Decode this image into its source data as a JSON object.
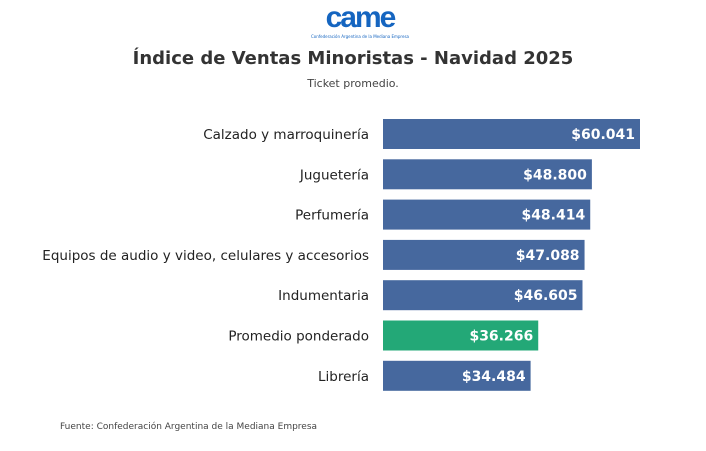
{
  "logo": {
    "text": "came",
    "subtext": "Confederación Argentina de la Mediana Empresa"
  },
  "source": "Fuente: Confederación Argentina de la Mediana Empresa",
  "chart_data": {
    "type": "bar",
    "orientation": "horizontal",
    "title": "Índice de Ventas Minoristas - Navidad 2025",
    "subtitle": "Ticket promedio.",
    "categories": [
      "Calzado y marroquinería",
      "Juguetería",
      "Perfumería",
      "Equipos de audio y video, celulares y accesorios",
      "Indumentaria",
      "Promedio ponderado",
      "Librería"
    ],
    "values": [
      60041,
      48800,
      48414,
      47088,
      46605,
      36266,
      34484
    ],
    "data_labels": [
      "$60.041",
      "$48.800",
      "$48.414",
      "$47.088",
      "$46.605",
      "$36.266",
      "$34.484"
    ],
    "colors": [
      "#46689e",
      "#46689e",
      "#46689e",
      "#46689e",
      "#46689e",
      "#23a877",
      "#46689e"
    ],
    "xlim": [
      0,
      60041
    ],
    "grid": false
  }
}
